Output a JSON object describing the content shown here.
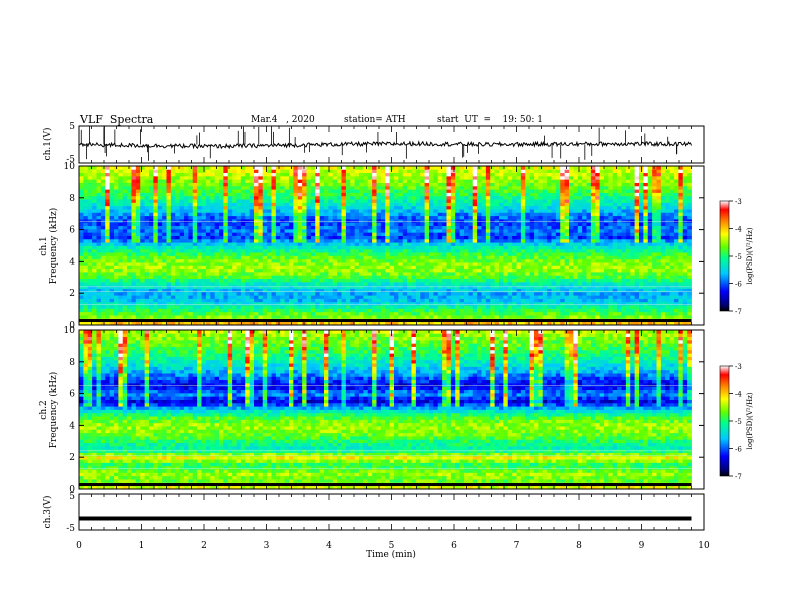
{
  "header": {
    "title": "VLF  Spectra",
    "date": "Mar.4   , 2020",
    "station": "station= ATH",
    "start": "start  UT  =    19: 50: 1"
  },
  "chart_data": [
    {
      "type": "line",
      "panel": "ch1-waveform",
      "ylabel": "ch.1(V)",
      "ylim": [
        -5,
        5
      ],
      "yticks": [
        "5",
        "-5"
      ],
      "xlim": [
        0,
        10
      ],
      "series": [
        {
          "values": [
            0.0,
            -0.3,
            -0.5,
            -0.2,
            0.1,
            0.2,
            0.0,
            0.1,
            0.2,
            0.1
          ]
        }
      ]
    },
    {
      "type": "heatmap",
      "panel": "ch1-spectrogram",
      "ylabel_top": "ch.1",
      "ylabel": "Frequency  (kHz)",
      "ylim": [
        0,
        10
      ],
      "yticks": [
        "0",
        "2",
        "4",
        "6",
        "8",
        "10"
      ],
      "xlim": [
        0,
        9.8
      ],
      "colorbar": {
        "label": "log(PSD)(V²/Hz)",
        "range": [
          -7,
          -3
        ],
        "ticks": [
          "-3",
          "-4",
          "-5",
          "-6",
          "-7"
        ]
      },
      "profile_khz": [
        0,
        0.5,
        1,
        1.5,
        2,
        2.5,
        3,
        3.5,
        4,
        4.5,
        5,
        5.5,
        6,
        6.5,
        7,
        7.5,
        8,
        8.5,
        9,
        9.5,
        10
      ],
      "profile_log_psd": [
        -3.8,
        -4.6,
        -5.0,
        -5.6,
        -5.7,
        -5.4,
        -4.8,
        -4.5,
        -4.6,
        -4.9,
        -5.4,
        -6.1,
        -5.9,
        -6.1,
        -5.8,
        -5.4,
        -5.1,
        -4.8,
        -4.6,
        -4.4,
        -4.3
      ]
    },
    {
      "type": "heatmap",
      "panel": "ch2-spectrogram",
      "ylabel_top": "ch.2",
      "ylabel": "Frequency  (kHz)",
      "ylim": [
        0,
        10
      ],
      "yticks": [
        "0",
        "2",
        "4",
        "6",
        "8",
        "10"
      ],
      "xlim": [
        0,
        9.8
      ],
      "colorbar": {
        "label": "log(PSD)(V²/Hz)",
        "range": [
          -7,
          -3
        ],
        "ticks": [
          "-3",
          "-4",
          "-5",
          "-6",
          "-7"
        ]
      },
      "profile_khz": [
        0,
        0.5,
        1,
        1.5,
        2,
        2.5,
        3,
        3.5,
        4,
        4.5,
        5,
        5.5,
        6,
        6.5,
        7,
        7.5,
        8,
        8.5,
        9,
        9.5,
        10
      ],
      "profile_log_psd": [
        -4.2,
        -4.7,
        -4.5,
        -5.0,
        -4.2,
        -5.3,
        -5.0,
        -4.6,
        -4.5,
        -4.8,
        -5.5,
        -6.4,
        -5.8,
        -6.4,
        -6.0,
        -5.6,
        -5.3,
        -5.0,
        -4.8,
        -4.6,
        -4.4
      ]
    },
    {
      "type": "line",
      "panel": "ch3-waveform",
      "ylabel": "ch.3(V)",
      "ylim": [
        -5,
        5
      ],
      "yticks": [
        "5",
        "-5"
      ],
      "xlim": [
        0,
        10
      ],
      "series": [
        {
          "values": [
            -1.8,
            -1.8,
            -1.8,
            -1.8,
            -1.8,
            -1.8,
            -1.8,
            -1.8,
            -1.8,
            -1.8
          ]
        }
      ]
    }
  ],
  "xaxis": {
    "label": "Time  (min)",
    "ticks": [
      "0",
      "1",
      "2",
      "3",
      "4",
      "5",
      "6",
      "7",
      "8",
      "9",
      "10"
    ]
  }
}
